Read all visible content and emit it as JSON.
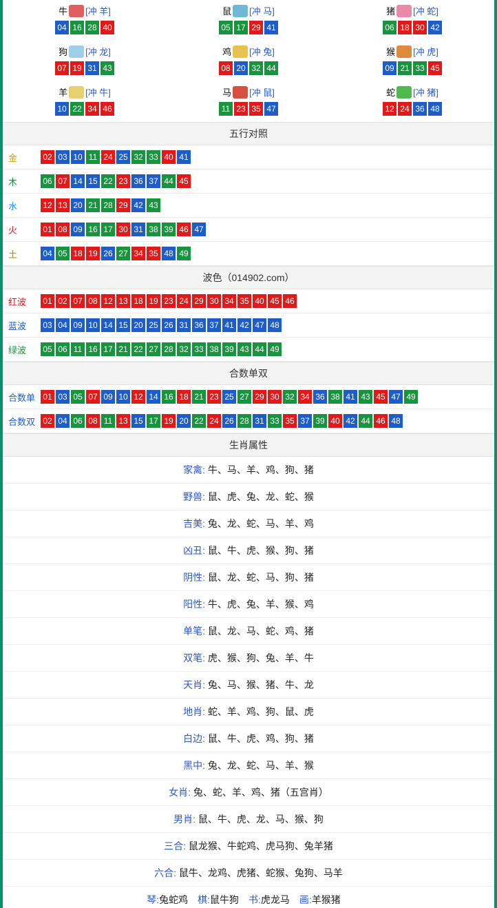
{
  "colors": {
    "red_bg": "#e11919",
    "blue_bg": "#1e5cc8",
    "green_bg": "#18933e",
    "border": "#0a8f6a"
  },
  "zodiac": [
    {
      "name": "牛",
      "icon_color": "#e06060",
      "chong": "[冲 羊]",
      "nums": [
        {
          "v": "04",
          "c": "blue"
        },
        {
          "v": "16",
          "c": "green"
        },
        {
          "v": "28",
          "c": "green"
        },
        {
          "v": "40",
          "c": "red"
        }
      ]
    },
    {
      "name": "鼠",
      "icon_color": "#6fb8d8",
      "chong": "[冲 马]",
      "nums": [
        {
          "v": "05",
          "c": "green"
        },
        {
          "v": "17",
          "c": "green"
        },
        {
          "v": "29",
          "c": "red"
        },
        {
          "v": "41",
          "c": "blue"
        }
      ]
    },
    {
      "name": "猪",
      "icon_color": "#e88aa8",
      "chong": "[冲 蛇]",
      "nums": [
        {
          "v": "06",
          "c": "green"
        },
        {
          "v": "18",
          "c": "red"
        },
        {
          "v": "30",
          "c": "red"
        },
        {
          "v": "42",
          "c": "blue"
        }
      ]
    },
    {
      "name": "狗",
      "icon_color": "#9fcfe8",
      "chong": "[冲 龙]",
      "nums": [
        {
          "v": "07",
          "c": "red"
        },
        {
          "v": "19",
          "c": "red"
        },
        {
          "v": "31",
          "c": "blue"
        },
        {
          "v": "43",
          "c": "green"
        }
      ]
    },
    {
      "name": "鸡",
      "icon_color": "#e8c24f",
      "chong": "[冲 兔]",
      "nums": [
        {
          "v": "08",
          "c": "red"
        },
        {
          "v": "20",
          "c": "blue"
        },
        {
          "v": "32",
          "c": "green"
        },
        {
          "v": "44",
          "c": "green"
        }
      ]
    },
    {
      "name": "猴",
      "icon_color": "#e08a40",
      "chong": "[冲 虎]",
      "nums": [
        {
          "v": "09",
          "c": "blue"
        },
        {
          "v": "21",
          "c": "green"
        },
        {
          "v": "33",
          "c": "green"
        },
        {
          "v": "45",
          "c": "red"
        }
      ]
    },
    {
      "name": "羊",
      "icon_color": "#e8d070",
      "chong": "[冲 牛]",
      "nums": [
        {
          "v": "10",
          "c": "blue"
        },
        {
          "v": "22",
          "c": "green"
        },
        {
          "v": "34",
          "c": "red"
        },
        {
          "v": "46",
          "c": "red"
        }
      ]
    },
    {
      "name": "马",
      "icon_color": "#d85040",
      "chong": "[冲 鼠]",
      "nums": [
        {
          "v": "11",
          "c": "green"
        },
        {
          "v": "23",
          "c": "red"
        },
        {
          "v": "35",
          "c": "red"
        },
        {
          "v": "47",
          "c": "blue"
        }
      ]
    },
    {
      "name": "蛇",
      "icon_color": "#4fb84f",
      "chong": "[冲 猪]",
      "nums": [
        {
          "v": "12",
          "c": "red"
        },
        {
          "v": "24",
          "c": "red"
        },
        {
          "v": "36",
          "c": "blue"
        },
        {
          "v": "48",
          "c": "blue"
        }
      ]
    }
  ],
  "wuxing": {
    "title": "五行对照",
    "rows": [
      {
        "label": "金",
        "label_class": "lbl-gold",
        "nums": [
          {
            "v": "02",
            "c": "red"
          },
          {
            "v": "03",
            "c": "blue"
          },
          {
            "v": "10",
            "c": "blue"
          },
          {
            "v": "11",
            "c": "green"
          },
          {
            "v": "24",
            "c": "red"
          },
          {
            "v": "25",
            "c": "blue"
          },
          {
            "v": "32",
            "c": "green"
          },
          {
            "v": "33",
            "c": "green"
          },
          {
            "v": "40",
            "c": "red"
          },
          {
            "v": "41",
            "c": "blue"
          }
        ]
      },
      {
        "label": "木",
        "label_class": "lbl-wood",
        "nums": [
          {
            "v": "06",
            "c": "green"
          },
          {
            "v": "07",
            "c": "red"
          },
          {
            "v": "14",
            "c": "blue"
          },
          {
            "v": "15",
            "c": "blue"
          },
          {
            "v": "22",
            "c": "green"
          },
          {
            "v": "23",
            "c": "red"
          },
          {
            "v": "36",
            "c": "blue"
          },
          {
            "v": "37",
            "c": "blue"
          },
          {
            "v": "44",
            "c": "green"
          },
          {
            "v": "45",
            "c": "red"
          }
        ]
      },
      {
        "label": "水",
        "label_class": "lbl-water",
        "nums": [
          {
            "v": "12",
            "c": "red"
          },
          {
            "v": "13",
            "c": "red"
          },
          {
            "v": "20",
            "c": "blue"
          },
          {
            "v": "21",
            "c": "green"
          },
          {
            "v": "28",
            "c": "green"
          },
          {
            "v": "29",
            "c": "red"
          },
          {
            "v": "42",
            "c": "blue"
          },
          {
            "v": "43",
            "c": "green"
          }
        ]
      },
      {
        "label": "火",
        "label_class": "lbl-fire",
        "nums": [
          {
            "v": "01",
            "c": "red"
          },
          {
            "v": "08",
            "c": "red"
          },
          {
            "v": "09",
            "c": "blue"
          },
          {
            "v": "16",
            "c": "green"
          },
          {
            "v": "17",
            "c": "green"
          },
          {
            "v": "30",
            "c": "red"
          },
          {
            "v": "31",
            "c": "blue"
          },
          {
            "v": "38",
            "c": "green"
          },
          {
            "v": "39",
            "c": "green"
          },
          {
            "v": "46",
            "c": "red"
          },
          {
            "v": "47",
            "c": "blue"
          }
        ]
      },
      {
        "label": "土",
        "label_class": "lbl-earth",
        "nums": [
          {
            "v": "04",
            "c": "blue"
          },
          {
            "v": "05",
            "c": "green"
          },
          {
            "v": "18",
            "c": "red"
          },
          {
            "v": "19",
            "c": "red"
          },
          {
            "v": "26",
            "c": "blue"
          },
          {
            "v": "27",
            "c": "green"
          },
          {
            "v": "34",
            "c": "red"
          },
          {
            "v": "35",
            "c": "red"
          },
          {
            "v": "48",
            "c": "blue"
          },
          {
            "v": "49",
            "c": "green"
          }
        ]
      }
    ]
  },
  "bose": {
    "title": "波色（014902.com）",
    "rows": [
      {
        "label": "红波",
        "label_class": "lbl-red",
        "nums": [
          {
            "v": "01",
            "c": "red"
          },
          {
            "v": "02",
            "c": "red"
          },
          {
            "v": "07",
            "c": "red"
          },
          {
            "v": "08",
            "c": "red"
          },
          {
            "v": "12",
            "c": "red"
          },
          {
            "v": "13",
            "c": "red"
          },
          {
            "v": "18",
            "c": "red"
          },
          {
            "v": "19",
            "c": "red"
          },
          {
            "v": "23",
            "c": "red"
          },
          {
            "v": "24",
            "c": "red"
          },
          {
            "v": "29",
            "c": "red"
          },
          {
            "v": "30",
            "c": "red"
          },
          {
            "v": "34",
            "c": "red"
          },
          {
            "v": "35",
            "c": "red"
          },
          {
            "v": "40",
            "c": "red"
          },
          {
            "v": "45",
            "c": "red"
          },
          {
            "v": "46",
            "c": "red"
          }
        ]
      },
      {
        "label": "蓝波",
        "label_class": "lbl-blue",
        "nums": [
          {
            "v": "03",
            "c": "blue"
          },
          {
            "v": "04",
            "c": "blue"
          },
          {
            "v": "09",
            "c": "blue"
          },
          {
            "v": "10",
            "c": "blue"
          },
          {
            "v": "14",
            "c": "blue"
          },
          {
            "v": "15",
            "c": "blue"
          },
          {
            "v": "20",
            "c": "blue"
          },
          {
            "v": "25",
            "c": "blue"
          },
          {
            "v": "26",
            "c": "blue"
          },
          {
            "v": "31",
            "c": "blue"
          },
          {
            "v": "36",
            "c": "blue"
          },
          {
            "v": "37",
            "c": "blue"
          },
          {
            "v": "41",
            "c": "blue"
          },
          {
            "v": "42",
            "c": "blue"
          },
          {
            "v": "47",
            "c": "blue"
          },
          {
            "v": "48",
            "c": "blue"
          }
        ]
      },
      {
        "label": "绿波",
        "label_class": "lbl-green",
        "nums": [
          {
            "v": "05",
            "c": "green"
          },
          {
            "v": "06",
            "c": "green"
          },
          {
            "v": "11",
            "c": "green"
          },
          {
            "v": "16",
            "c": "green"
          },
          {
            "v": "17",
            "c": "green"
          },
          {
            "v": "21",
            "c": "green"
          },
          {
            "v": "22",
            "c": "green"
          },
          {
            "v": "27",
            "c": "green"
          },
          {
            "v": "28",
            "c": "green"
          },
          {
            "v": "32",
            "c": "green"
          },
          {
            "v": "33",
            "c": "green"
          },
          {
            "v": "38",
            "c": "green"
          },
          {
            "v": "39",
            "c": "green"
          },
          {
            "v": "43",
            "c": "green"
          },
          {
            "v": "44",
            "c": "green"
          },
          {
            "v": "49",
            "c": "green"
          }
        ]
      }
    ]
  },
  "heshu": {
    "title": "合数单双",
    "rows": [
      {
        "label": "合数单",
        "label_class": "lbl-blue",
        "nums": [
          {
            "v": "01",
            "c": "red"
          },
          {
            "v": "03",
            "c": "blue"
          },
          {
            "v": "05",
            "c": "green"
          },
          {
            "v": "07",
            "c": "red"
          },
          {
            "v": "09",
            "c": "blue"
          },
          {
            "v": "10",
            "c": "blue"
          },
          {
            "v": "12",
            "c": "red"
          },
          {
            "v": "14",
            "c": "blue"
          },
          {
            "v": "16",
            "c": "green"
          },
          {
            "v": "18",
            "c": "red"
          },
          {
            "v": "21",
            "c": "green"
          },
          {
            "v": "23",
            "c": "red"
          },
          {
            "v": "25",
            "c": "blue"
          },
          {
            "v": "27",
            "c": "green"
          },
          {
            "v": "29",
            "c": "red"
          },
          {
            "v": "30",
            "c": "red"
          },
          {
            "v": "32",
            "c": "green"
          },
          {
            "v": "34",
            "c": "red"
          },
          {
            "v": "36",
            "c": "blue"
          },
          {
            "v": "38",
            "c": "green"
          },
          {
            "v": "41",
            "c": "blue"
          },
          {
            "v": "43",
            "c": "green"
          },
          {
            "v": "45",
            "c": "red"
          },
          {
            "v": "47",
            "c": "blue"
          },
          {
            "v": "49",
            "c": "green"
          }
        ]
      },
      {
        "label": "合数双",
        "label_class": "lbl-blue",
        "nums": [
          {
            "v": "02",
            "c": "red"
          },
          {
            "v": "04",
            "c": "blue"
          },
          {
            "v": "06",
            "c": "green"
          },
          {
            "v": "08",
            "c": "red"
          },
          {
            "v": "11",
            "c": "green"
          },
          {
            "v": "13",
            "c": "red"
          },
          {
            "v": "15",
            "c": "blue"
          },
          {
            "v": "17",
            "c": "green"
          },
          {
            "v": "19",
            "c": "red"
          },
          {
            "v": "20",
            "c": "blue"
          },
          {
            "v": "22",
            "c": "green"
          },
          {
            "v": "24",
            "c": "red"
          },
          {
            "v": "26",
            "c": "blue"
          },
          {
            "v": "28",
            "c": "green"
          },
          {
            "v": "31",
            "c": "blue"
          },
          {
            "v": "33",
            "c": "green"
          },
          {
            "v": "35",
            "c": "red"
          },
          {
            "v": "37",
            "c": "blue"
          },
          {
            "v": "39",
            "c": "green"
          },
          {
            "v": "40",
            "c": "red"
          },
          {
            "v": "42",
            "c": "blue"
          },
          {
            "v": "44",
            "c": "green"
          },
          {
            "v": "46",
            "c": "red"
          },
          {
            "v": "48",
            "c": "blue"
          }
        ]
      }
    ]
  },
  "attrs": {
    "title": "生肖属性",
    "lines": [
      {
        "k": "家禽",
        "v": "牛、马、羊、鸡、狗、猪"
      },
      {
        "k": "野兽",
        "v": "鼠、虎、兔、龙、蛇、猴"
      },
      {
        "k": "吉美",
        "v": "兔、龙、蛇、马、羊、鸡"
      },
      {
        "k": "凶丑",
        "v": "鼠、牛、虎、猴、狗、猪"
      },
      {
        "k": "阴性",
        "v": "鼠、龙、蛇、马、狗、猪"
      },
      {
        "k": "阳性",
        "v": "牛、虎、兔、羊、猴、鸡"
      },
      {
        "k": "单笔",
        "v": "鼠、龙、马、蛇、鸡、猪"
      },
      {
        "k": "双笔",
        "v": "虎、猴、狗、兔、羊、牛"
      },
      {
        "k": "天肖",
        "v": "兔、马、猴、猪、牛、龙"
      },
      {
        "k": "地肖",
        "v": "蛇、羊、鸡、狗、鼠、虎"
      },
      {
        "k": "白边",
        "v": "鼠、牛、虎、鸡、狗、猪"
      },
      {
        "k": "黑中",
        "v": "兔、龙、蛇、马、羊、猴"
      },
      {
        "k": "女肖",
        "v": "兔、蛇、羊、鸡、猪（五宫肖）"
      },
      {
        "k": "男肖",
        "v": "鼠、牛、虎、龙、马、猴、狗"
      },
      {
        "k": "三合",
        "v": "鼠龙猴、牛蛇鸡、虎马狗、兔羊猪"
      },
      {
        "k": "六合",
        "v": "鼠牛、龙鸡、虎猪、蛇猴、兔狗、马羊"
      }
    ]
  },
  "footer_segs": [
    {
      "k": "琴:",
      "v": "兔蛇鸡"
    },
    {
      "k": "棋:",
      "v": "鼠牛狗"
    },
    {
      "k": "书:",
      "v": "虎龙马"
    },
    {
      "k": "画:",
      "v": "羊猴猪"
    }
  ]
}
